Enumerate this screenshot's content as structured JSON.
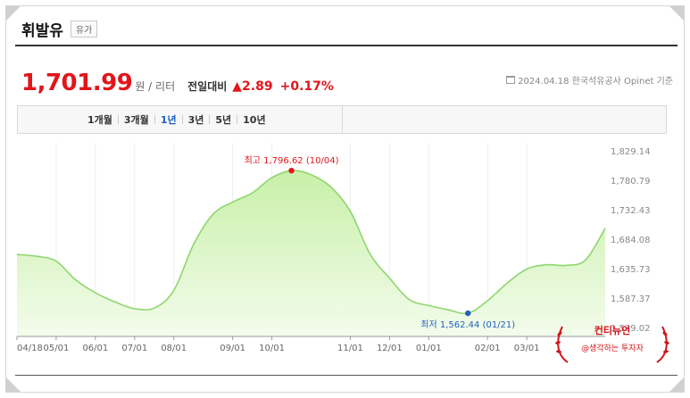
{
  "header": {
    "title": "휘발유",
    "tag": "유가"
  },
  "price": {
    "value": "1,701.99",
    "unit": "원 / 리터",
    "compare_label": "전일대비",
    "change": "▲2.89",
    "change_pct": "+0.17%",
    "source": "2024.04.18  한국석유공사 Opinet 기준"
  },
  "tabs": [
    {
      "label": "1개월",
      "active": false
    },
    {
      "label": "3개월",
      "active": false
    },
    {
      "label": "1년",
      "active": true
    },
    {
      "label": "3년",
      "active": false
    },
    {
      "label": "5년",
      "active": false
    },
    {
      "label": "10년",
      "active": false
    }
  ],
  "watermark": {
    "title": "컨티뉴언",
    "subtitle": "@생각하는 투자자"
  },
  "colors": {
    "accent_red": "#e1161b",
    "accent_blue": "#2060c0",
    "line": "#8fd66f",
    "fill_top": "#c8f0a8"
  },
  "chart_data": {
    "type": "area",
    "x": [
      "04/18",
      "04/25",
      "05/01",
      "05/15",
      "06/01",
      "06/15",
      "07/01",
      "07/15",
      "08/01",
      "08/10",
      "08/20",
      "09/01",
      "09/15",
      "10/01",
      "10/04",
      "10/10",
      "10/15",
      "11/01",
      "11/15",
      "12/01",
      "12/15",
      "01/01",
      "01/10",
      "01/21",
      "02/01",
      "02/15",
      "03/01",
      "03/15",
      "04/01",
      "04/10",
      "04/18"
    ],
    "values": [
      1659,
      1656,
      1648,
      1617,
      1596,
      1581,
      1570,
      1571,
      1600,
      1675,
      1725,
      1745,
      1760,
      1785,
      1796.62,
      1790,
      1770,
      1730,
      1660,
      1620,
      1585,
      1575,
      1568,
      1562.44,
      1583,
      1612,
      1635,
      1642,
      1641,
      1650,
      1701.99
    ],
    "x_ticks": [
      "04/18",
      "05/01",
      "06/01",
      "07/01",
      "08/01",
      "09/01",
      "10/01",
      "11/01",
      "12/01",
      "01/01",
      "02/01",
      "03/01"
    ],
    "y_ticks": [
      "1,829.14",
      "1,780.79",
      "1,732.43",
      "1,684.08",
      "1,635.73",
      "1,587.37",
      "1,539.02"
    ],
    "ylim": [
      1539.02,
      1829.14
    ],
    "max": {
      "label": "최고",
      "value": "1,796.62",
      "date": "(10/04)"
    },
    "min": {
      "label": "최저",
      "value": "1,562.44",
      "date": "(01/21)"
    },
    "grid": "vertical"
  }
}
